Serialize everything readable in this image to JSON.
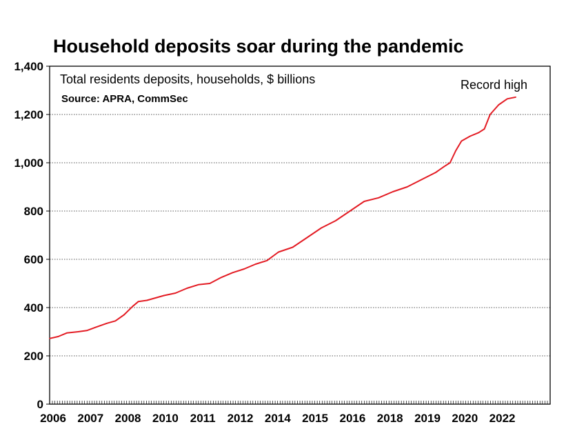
{
  "chart_data": {
    "type": "line",
    "title": "Household deposits soar during the pandemic",
    "subtitle": "Total residents deposits, households, $ billions",
    "source": "Source: APRA, CommSec",
    "annotation": "Record high",
    "ylim": [
      0,
      1400
    ],
    "yticks": [
      0,
      200,
      400,
      600,
      800,
      1000,
      1200,
      1400
    ],
    "ytick_labels": [
      "0",
      "200",
      "400",
      "600",
      "800",
      "1,000",
      "1,200",
      "1,400"
    ],
    "xtick_labels": [
      "2006",
      "2007",
      "2008",
      "2010",
      "2011",
      "2012",
      "2014",
      "2015",
      "2016",
      "2018",
      "2019",
      "2020",
      "2022"
    ],
    "xlim": [
      2006.0,
      2023.5
    ],
    "grid": true,
    "line_color": "#e31b23",
    "series": [
      {
        "x": [
          2006.0,
          2006.3,
          2006.6,
          2007.0,
          2007.3,
          2007.6,
          2008.0,
          2008.3,
          2008.6,
          2008.9,
          2009.1,
          2009.4,
          2009.7,
          2010.0,
          2010.4,
          2010.8,
          2011.2,
          2011.6,
          2012.0,
          2012.4,
          2012.8,
          2013.2,
          2013.6,
          2014.0,
          2014.5,
          2015.0,
          2015.5,
          2016.0,
          2016.5,
          2017.0,
          2017.5,
          2018.0,
          2018.5,
          2019.0,
          2019.5,
          2019.8,
          2020.0,
          2020.2,
          2020.4,
          2020.7,
          2021.0,
          2021.2,
          2021.4,
          2021.7,
          2022.0,
          2022.3
        ],
        "y": [
          272,
          280,
          295,
          300,
          305,
          318,
          335,
          345,
          370,
          405,
          425,
          430,
          440,
          450,
          460,
          480,
          495,
          500,
          525,
          545,
          560,
          580,
          595,
          630,
          650,
          690,
          730,
          760,
          800,
          840,
          855,
          880,
          900,
          930,
          960,
          985,
          1000,
          1050,
          1090,
          1110,
          1125,
          1140,
          1200,
          1240,
          1265,
          1272
        ]
      }
    ]
  }
}
